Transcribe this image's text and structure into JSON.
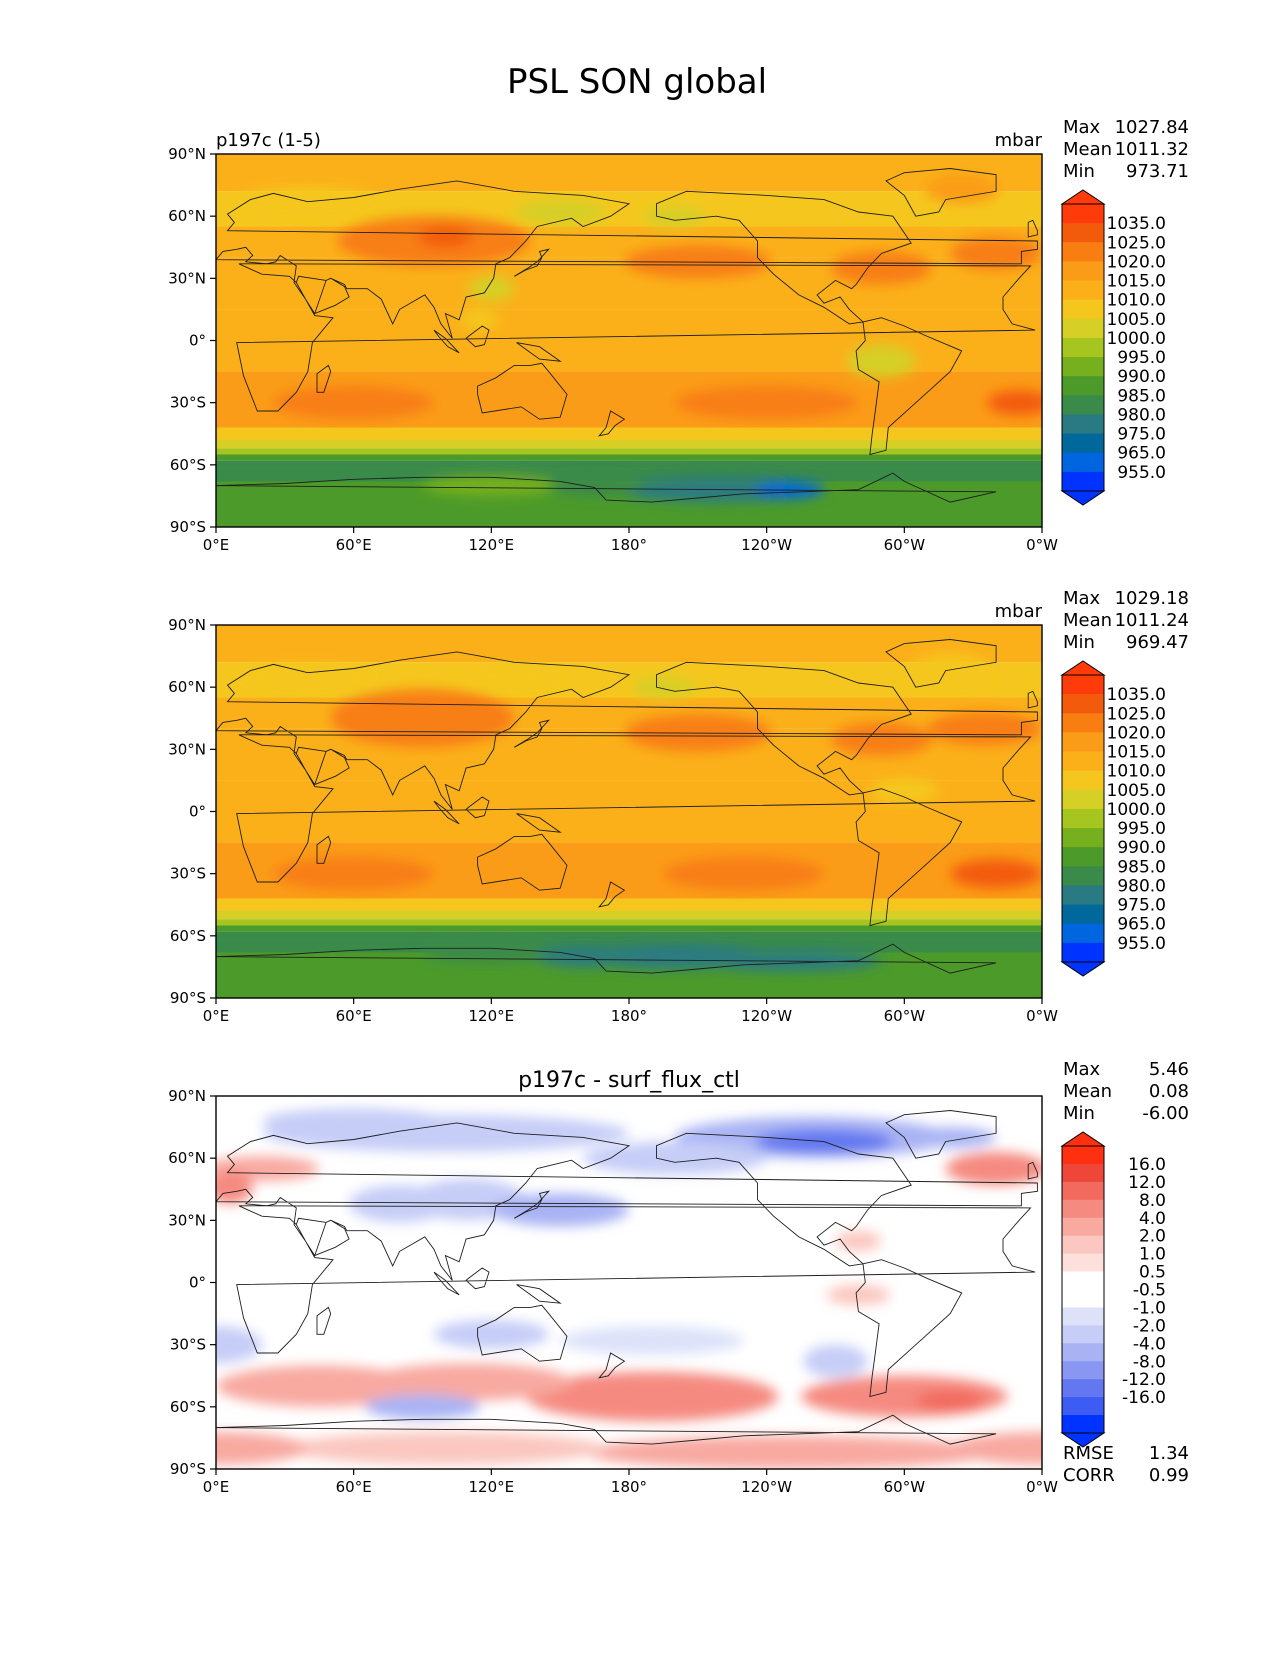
{
  "title": "PSL SON global",
  "colors": {
    "psl_levels": [
      "#0033ff",
      "#0066e0",
      "#00689a",
      "#297a83",
      "#3a8a4a",
      "#4c9a2a",
      "#76b01e",
      "#a6c51f",
      "#d6cf25",
      "#f5c71e",
      "#fbb01a",
      "#fb9c18",
      "#f87e12",
      "#f35b0c",
      "#ff3b0a"
    ],
    "diff_levels": [
      "#0033ff",
      "#3c5cf4",
      "#6378f0",
      "#8a97f2",
      "#a9b3f4",
      "#c6cdf7",
      "#dde2f9",
      "#ffffff",
      "#ffffff",
      "#fde0dc",
      "#fbc7c0",
      "#f8a9a0",
      "#f58a80",
      "#f26a5e",
      "#ef463a",
      "#ff3010"
    ],
    "axis": "#000000",
    "coastline": "#1e1e1e"
  },
  "panels": [
    {
      "key": "test",
      "left_label": "p197c (1-5)",
      "units": "mbar",
      "center_title": "",
      "stats": {
        "max_label": "Max",
        "max": "1027.84",
        "mean_label": "Mean",
        "mean": "1011.32",
        "min_label": "Min",
        "min": "973.71"
      },
      "colorbar_labels": [
        "1035.0",
        "1025.0",
        "1020.0",
        "1015.0",
        "1010.0",
        "1005.0",
        "1000.0",
        "995.0",
        "990.0",
        "985.0",
        "980.0",
        "975.0",
        "965.0",
        "955.0"
      ],
      "colorbar_palette": "psl_levels",
      "rmse_label": "",
      "rmse": "",
      "corr_label": "",
      "corr": ""
    },
    {
      "key": "reference",
      "left_label": "",
      "units": "mbar",
      "center_title": "",
      "stats": {
        "max_label": "Max",
        "max": "1029.18",
        "mean_label": "Mean",
        "mean": "1011.24",
        "min_label": "Min",
        "min": "969.47"
      },
      "colorbar_labels": [
        "1035.0",
        "1025.0",
        "1020.0",
        "1015.0",
        "1010.0",
        "1005.0",
        "1000.0",
        "995.0",
        "990.0",
        "985.0",
        "980.0",
        "975.0",
        "965.0",
        "955.0"
      ],
      "colorbar_palette": "psl_levels",
      "rmse_label": "",
      "rmse": "",
      "corr_label": "",
      "corr": ""
    },
    {
      "key": "difference",
      "left_label": "",
      "units": "",
      "center_title": "p197c - surf_flux_ctl",
      "stats": {
        "max_label": "Max",
        "max": "5.46",
        "mean_label": "Mean",
        "mean": "0.08",
        "min_label": "Min",
        "min": "-6.00"
      },
      "colorbar_labels": [
        "16.0",
        "12.0",
        "8.0",
        "4.0",
        "2.0",
        "1.0",
        "0.5",
        "-0.5",
        "-1.0",
        "-2.0",
        "-4.0",
        "-8.0",
        "-12.0",
        "-16.0"
      ],
      "colorbar_palette": "diff_levels",
      "rmse_label": "RMSE",
      "rmse": "1.34",
      "corr_label": "CORR",
      "corr": "0.99"
    }
  ],
  "axes": {
    "lat_ticks": [
      "90°N",
      "60°N",
      "30°N",
      "0°",
      "30°S",
      "60°S",
      "90°S"
    ],
    "lon_ticks": [
      "0°E",
      "60°E",
      "120°E",
      "180°",
      "120°W",
      "60°W",
      "0°W"
    ]
  }
}
